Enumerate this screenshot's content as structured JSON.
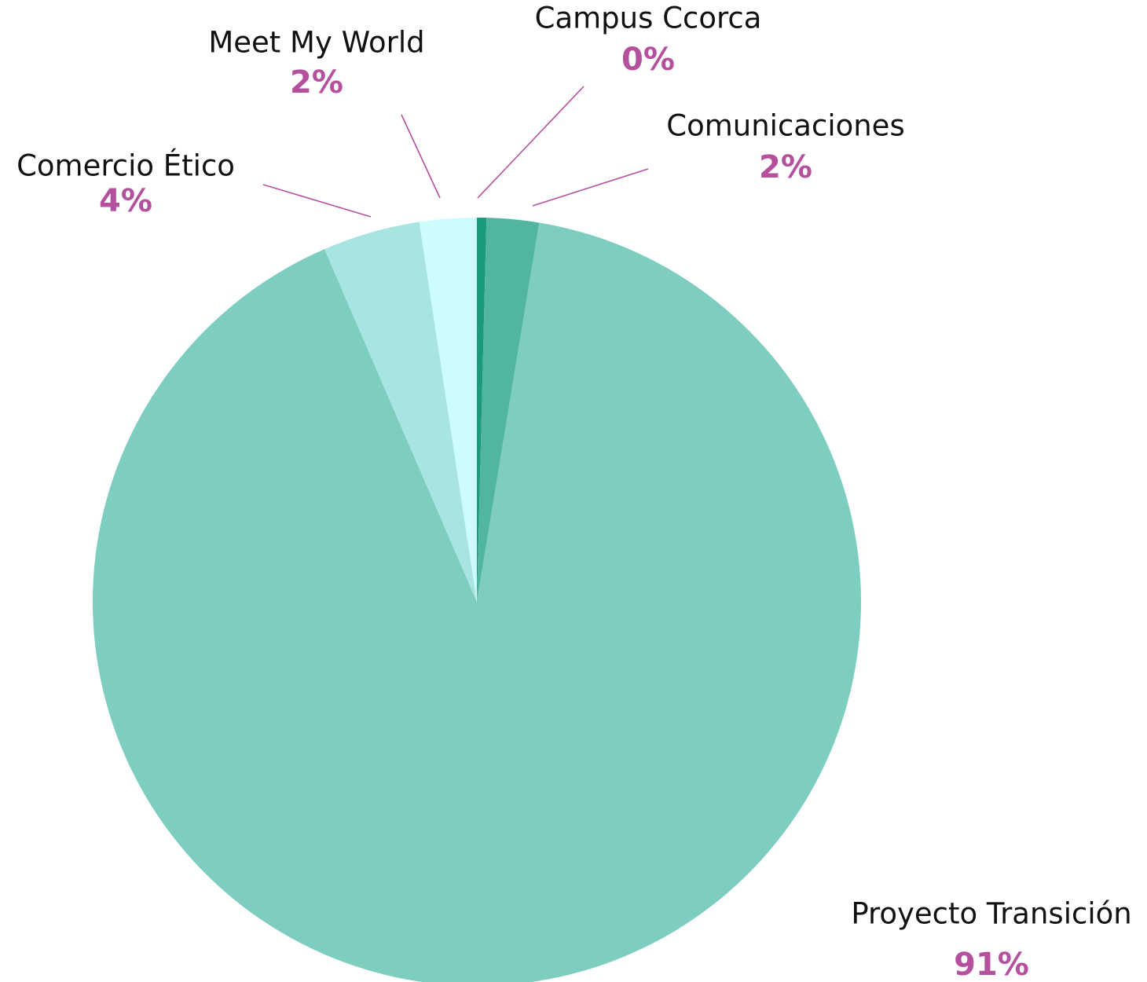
{
  "chart_data": {
    "type": "pie",
    "categories": [
      "Campus Ccorca",
      "Comunicaciones",
      "Proyecto Transición",
      "Comercio Ético",
      "Meet My World"
    ],
    "values": [
      0.4,
      2.2,
      91,
      4.1,
      2.4
    ],
    "value_labels": [
      "0%",
      "2%",
      "91%",
      "4%",
      "2%"
    ],
    "colors": [
      "#1a9a7a",
      "#52b5a2",
      "#7ecdc1",
      "#a8e5e1",
      "#ccfcfb"
    ]
  }
}
